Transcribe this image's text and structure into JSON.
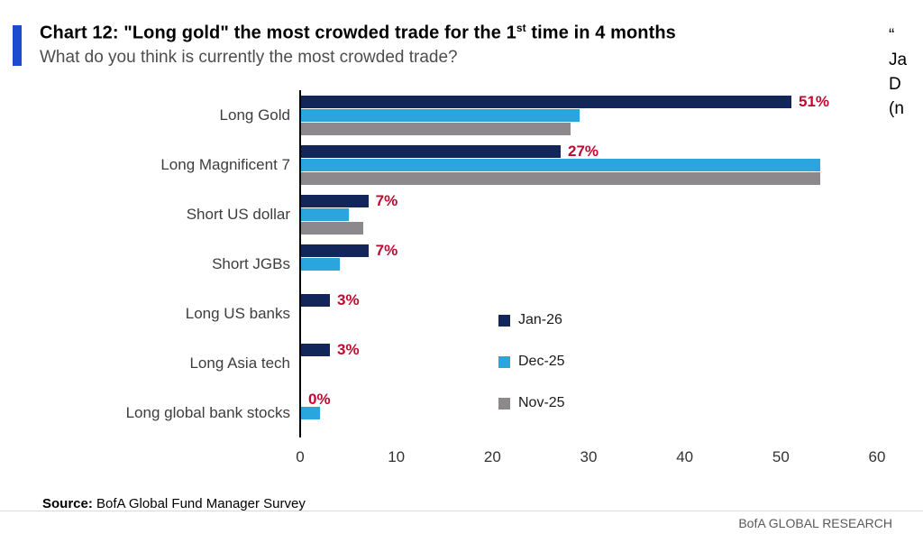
{
  "header": {
    "title_prefix": "Chart 12: \"Long gold\" the most crowded trade for the 1",
    "title_sup": "st",
    "title_suffix": " time in 4 months",
    "subtitle": "What do you think is currently the most crowded trade?"
  },
  "side_text": {
    "lines": [
      "“",
      "Ja",
      "D",
      "(n"
    ]
  },
  "chart_data": {
    "type": "bar",
    "orientation": "horizontal",
    "title": "Chart 12: \"Long gold\" the most crowded trade for the 1st time in 4 months",
    "subtitle": "What do you think is currently the most crowded trade?",
    "categories": [
      "Long Gold",
      "Long Magnificent 7",
      "Short US dollar",
      "Short JGBs",
      "Long US banks",
      "Long Asia tech",
      "Long global bank stocks"
    ],
    "series": [
      {
        "name": "Jan-26",
        "color": "#12265a",
        "values": [
          51,
          27,
          7,
          7,
          3,
          3,
          0
        ]
      },
      {
        "name": "Dec-25",
        "color": "#2ba5dd",
        "values": [
          29,
          54,
          5,
          4,
          0,
          0,
          2
        ]
      },
      {
        "name": "Nov-25",
        "color": "#8c888b",
        "values": [
          28,
          54,
          6.5,
          0,
          0,
          0,
          0
        ]
      }
    ],
    "value_labels": [
      "51%",
      "27%",
      "7%",
      "7%",
      "3%",
      "3%",
      "0%"
    ],
    "value_label_color": "#bd0a30",
    "xlim": [
      0,
      60
    ],
    "x_ticks": [
      0,
      10,
      20,
      30,
      40,
      50,
      60
    ],
    "grid": false,
    "legend_position": "right-middle"
  },
  "footer": {
    "source_label": "Source:",
    "source_text": " BofA Global Fund Manager Survey",
    "brand": "BofA GLOBAL RESEARCH"
  }
}
